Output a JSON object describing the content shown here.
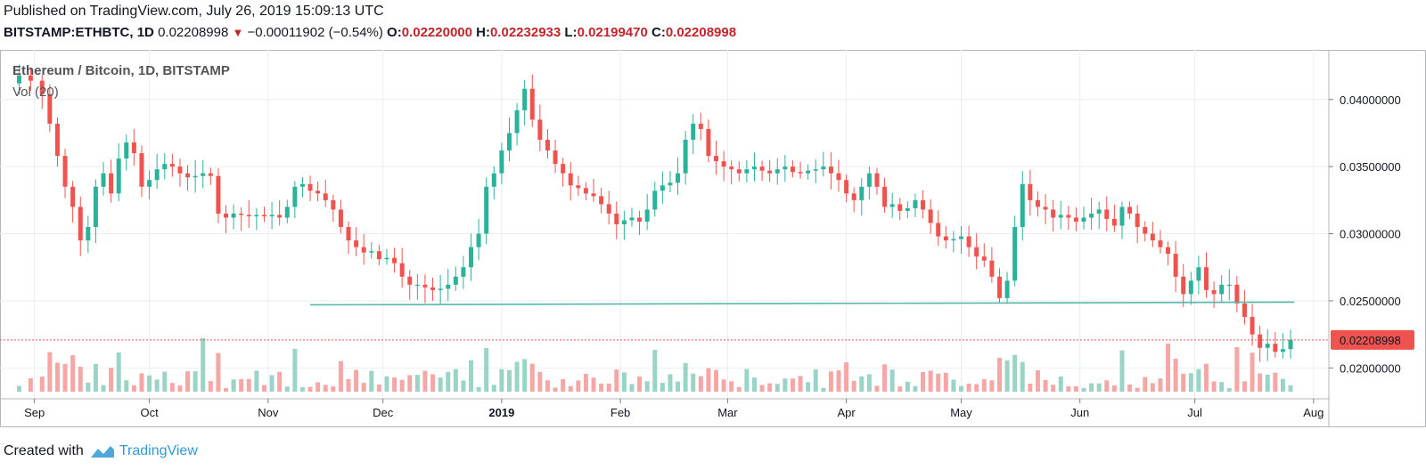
{
  "header": {
    "published": "Published on TradingView.com, July 26, 2019 15:09:13 UTC",
    "symbol": "BITSTAMP:ETHBTC, 1D",
    "last": "0.02208998",
    "change": "−0.00011902 (−0.54%)",
    "open_label": "O:",
    "open": "0.02220000",
    "high_label": "H:",
    "high": "0.02232933",
    "low_label": "L:",
    "low": "0.02199470",
    "close_label": "C:",
    "close": "0.02208998"
  },
  "legend": {
    "title": "Ethereum / Bitcoin, 1D, BITSTAMP",
    "volume": "Vol (20)"
  },
  "footer": {
    "created_with": "Created with",
    "brand": "TradingView"
  },
  "colors": {
    "up": "#2ab29a",
    "down": "#ef5350",
    "vol_up": "#99d4c7",
    "vol_down": "#f4a7a5",
    "support_line": "#55b8a8",
    "price_line": "#ef5350",
    "grid": "#e9eef2"
  },
  "chart_data": {
    "type": "candlestick",
    "title": "Ethereum / Bitcoin, 1D, BITSTAMP",
    "x_ticks": [
      "Sep",
      "Oct",
      "Nov",
      "Dec",
      "2019",
      "Feb",
      "Mar",
      "Apr",
      "May",
      "Jun",
      "Jul",
      "Aug"
    ],
    "y_ticks": [
      "0.04000000",
      "0.03500000",
      "0.03000000",
      "0.02500000",
      "0.02000000"
    ],
    "ylim": [
      0.0177,
      0.0437
    ],
    "last_price_label": "0.02208998",
    "support_line": {
      "from": "2018-11-12",
      "to": "2019-07-27",
      "start_value": 0.0247,
      "end_value": 0.0249
    },
    "series": [
      {
        "name": "ETHBTC",
        "points": [
          [
            "2018-08-25",
            0.0412
          ],
          [
            "2018-08-28",
            0.0418
          ],
          [
            "2018-08-31",
            0.0414
          ],
          [
            "2018-09-03",
            0.0404
          ],
          [
            "2018-09-05",
            0.0382
          ],
          [
            "2018-09-07",
            0.0358
          ],
          [
            "2018-09-09",
            0.0335
          ],
          [
            "2018-09-11",
            0.032
          ],
          [
            "2018-09-13",
            0.0295
          ],
          [
            "2018-09-15",
            0.0305
          ],
          [
            "2018-09-17",
            0.0335
          ],
          [
            "2018-09-19",
            0.0345
          ],
          [
            "2018-09-21",
            0.033
          ],
          [
            "2018-09-23",
            0.0356
          ],
          [
            "2018-09-25",
            0.0368
          ],
          [
            "2018-09-27",
            0.036
          ],
          [
            "2018-09-29",
            0.0335
          ],
          [
            "2018-10-01",
            0.034
          ],
          [
            "2018-10-03",
            0.0348
          ],
          [
            "2018-10-05",
            0.0352
          ],
          [
            "2018-10-07",
            0.035
          ],
          [
            "2018-10-09",
            0.0345
          ],
          [
            "2018-10-11",
            0.0342
          ],
          [
            "2018-10-13",
            0.0343
          ],
          [
            "2018-10-15",
            0.0345
          ],
          [
            "2018-10-17",
            0.0343
          ],
          [
            "2018-10-19",
            0.0315
          ],
          [
            "2018-10-21",
            0.0312
          ],
          [
            "2018-10-23",
            0.0315
          ],
          [
            "2018-10-25",
            0.0314
          ],
          [
            "2018-10-27",
            0.0313
          ],
          [
            "2018-10-29",
            0.0314
          ],
          [
            "2018-10-31",
            0.0313
          ],
          [
            "2018-11-02",
            0.0314
          ],
          [
            "2018-11-04",
            0.0312
          ],
          [
            "2018-11-06",
            0.032
          ],
          [
            "2018-11-08",
            0.0335
          ],
          [
            "2018-11-10",
            0.0337
          ],
          [
            "2018-11-12",
            0.0332
          ],
          [
            "2018-11-14",
            0.033
          ],
          [
            "2018-11-16",
            0.0325
          ],
          [
            "2018-11-18",
            0.0318
          ],
          [
            "2018-11-20",
            0.0305
          ],
          [
            "2018-11-22",
            0.0295
          ],
          [
            "2018-11-24",
            0.029
          ],
          [
            "2018-11-26",
            0.0286
          ],
          [
            "2018-11-28",
            0.0287
          ],
          [
            "2018-11-30",
            0.0281
          ],
          [
            "2018-12-02",
            0.0282
          ],
          [
            "2018-12-04",
            0.0278
          ],
          [
            "2018-12-06",
            0.0268
          ],
          [
            "2018-12-08",
            0.0262
          ],
          [
            "2018-12-10",
            0.0262
          ],
          [
            "2018-12-12",
            0.026
          ],
          [
            "2018-12-14",
            0.0258
          ],
          [
            "2018-12-16",
            0.0259
          ],
          [
            "2018-12-18",
            0.0262
          ],
          [
            "2018-12-20",
            0.0268
          ],
          [
            "2018-12-22",
            0.0275
          ],
          [
            "2018-12-24",
            0.029
          ],
          [
            "2018-12-26",
            0.03
          ],
          [
            "2018-12-28",
            0.0335
          ],
          [
            "2018-12-30",
            0.0345
          ],
          [
            "2019-01-01",
            0.0362
          ],
          [
            "2019-01-03",
            0.0375
          ],
          [
            "2019-01-05",
            0.0392
          ],
          [
            "2019-01-07",
            0.0408
          ],
          [
            "2019-01-09",
            0.0385
          ],
          [
            "2019-01-11",
            0.037
          ],
          [
            "2019-01-13",
            0.0362
          ],
          [
            "2019-01-15",
            0.0352
          ],
          [
            "2019-01-17",
            0.0345
          ],
          [
            "2019-01-19",
            0.0336
          ],
          [
            "2019-01-21",
            0.0334
          ],
          [
            "2019-01-23",
            0.033
          ],
          [
            "2019-01-25",
            0.0328
          ],
          [
            "2019-01-27",
            0.0322
          ],
          [
            "2019-01-29",
            0.0315
          ],
          [
            "2019-01-31",
            0.0307
          ],
          [
            "2019-02-02",
            0.031
          ],
          [
            "2019-02-04",
            0.0312
          ],
          [
            "2019-02-06",
            0.0309
          ],
          [
            "2019-02-08",
            0.0318
          ],
          [
            "2019-02-10",
            0.0332
          ],
          [
            "2019-02-12",
            0.0336
          ],
          [
            "2019-02-14",
            0.0338
          ],
          [
            "2019-02-16",
            0.0345
          ],
          [
            "2019-02-18",
            0.037
          ],
          [
            "2019-02-20",
            0.0382
          ],
          [
            "2019-02-22",
            0.0378
          ],
          [
            "2019-02-24",
            0.0358
          ],
          [
            "2019-02-26",
            0.0354
          ],
          [
            "2019-02-28",
            0.035
          ],
          [
            "2019-03-02",
            0.0348
          ],
          [
            "2019-03-04",
            0.0345
          ],
          [
            "2019-03-06",
            0.0348
          ],
          [
            "2019-03-08",
            0.035
          ],
          [
            "2019-03-10",
            0.0347
          ],
          [
            "2019-03-12",
            0.0345
          ],
          [
            "2019-03-14",
            0.0348
          ],
          [
            "2019-03-16",
            0.035
          ],
          [
            "2019-03-18",
            0.0346
          ],
          [
            "2019-03-20",
            0.0345
          ],
          [
            "2019-03-22",
            0.0347
          ],
          [
            "2019-03-24",
            0.0348
          ],
          [
            "2019-03-26",
            0.035
          ],
          [
            "2019-03-28",
            0.0345
          ],
          [
            "2019-03-30",
            0.034
          ],
          [
            "2019-04-01",
            0.033
          ],
          [
            "2019-04-03",
            0.0325
          ],
          [
            "2019-04-05",
            0.0335
          ],
          [
            "2019-04-07",
            0.0345
          ],
          [
            "2019-04-09",
            0.0335
          ],
          [
            "2019-04-11",
            0.032
          ],
          [
            "2019-04-13",
            0.0322
          ],
          [
            "2019-04-15",
            0.0317
          ],
          [
            "2019-04-17",
            0.0319
          ],
          [
            "2019-04-19",
            0.0325
          ],
          [
            "2019-04-21",
            0.0318
          ],
          [
            "2019-04-23",
            0.0308
          ],
          [
            "2019-04-25",
            0.0298
          ],
          [
            "2019-04-27",
            0.0295
          ],
          [
            "2019-04-29",
            0.0296
          ],
          [
            "2019-05-01",
            0.0298
          ],
          [
            "2019-05-03",
            0.029
          ],
          [
            "2019-05-05",
            0.0283
          ],
          [
            "2019-05-07",
            0.028
          ],
          [
            "2019-05-09",
            0.0268
          ],
          [
            "2019-05-11",
            0.0252
          ],
          [
            "2019-05-13",
            0.0265
          ],
          [
            "2019-05-15",
            0.0305
          ],
          [
            "2019-05-17",
            0.0337
          ],
          [
            "2019-05-19",
            0.0325
          ],
          [
            "2019-05-21",
            0.032
          ],
          [
            "2019-05-23",
            0.0318
          ],
          [
            "2019-05-25",
            0.0312
          ],
          [
            "2019-05-27",
            0.0314
          ],
          [
            "2019-05-29",
            0.0312
          ],
          [
            "2019-05-31",
            0.0309
          ],
          [
            "2019-06-02",
            0.0312
          ],
          [
            "2019-06-04",
            0.0315
          ],
          [
            "2019-06-06",
            0.0318
          ],
          [
            "2019-06-08",
            0.0311
          ],
          [
            "2019-06-10",
            0.0306
          ],
          [
            "2019-06-12",
            0.032
          ],
          [
            "2019-06-14",
            0.0315
          ],
          [
            "2019-06-16",
            0.0305
          ],
          [
            "2019-06-18",
            0.03
          ],
          [
            "2019-06-20",
            0.0295
          ],
          [
            "2019-06-22",
            0.029
          ],
          [
            "2019-06-24",
            0.0285
          ],
          [
            "2019-06-26",
            0.0268
          ],
          [
            "2019-06-28",
            0.0255
          ],
          [
            "2019-06-30",
            0.0265
          ],
          [
            "2019-07-02",
            0.0275
          ],
          [
            "2019-07-04",
            0.0258
          ],
          [
            "2019-07-06",
            0.0255
          ],
          [
            "2019-07-08",
            0.0262
          ],
          [
            "2019-07-10",
            0.0262
          ],
          [
            "2019-07-12",
            0.0248
          ],
          [
            "2019-07-14",
            0.0238
          ],
          [
            "2019-07-16",
            0.0225
          ],
          [
            "2019-07-18",
            0.0215
          ],
          [
            "2019-07-20",
            0.0218
          ],
          [
            "2019-07-22",
            0.0212
          ],
          [
            "2019-07-24",
            0.0214
          ],
          [
            "2019-07-26",
            0.0221
          ]
        ]
      }
    ],
    "volume": {
      "name": "Vol (20)",
      "spikes": [
        [
          "2018-10-15",
          1.0
        ],
        [
          "2018-11-21",
          0.68
        ],
        [
          "2019-04-01",
          0.55
        ],
        [
          "2019-05-14",
          0.72
        ],
        [
          "2019-06-24",
          0.9
        ]
      ]
    }
  }
}
